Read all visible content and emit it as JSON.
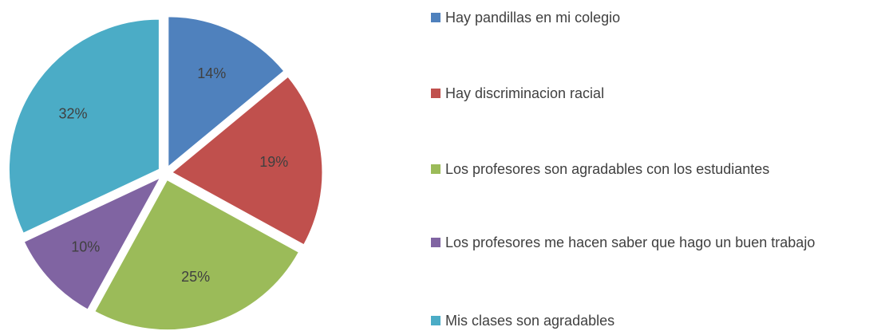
{
  "chart_data": {
    "type": "pie",
    "categories": [
      "Hay pandillas en mi colegio",
      "Hay discriminacion racial",
      "Los profesores son agradables con los estudiantes",
      "Los profesores me hacen saber que hago un buen trabajo",
      "Mis clases son agradables"
    ],
    "values": [
      14,
      19,
      25,
      10,
      32
    ],
    "value_labels": [
      "14%",
      "19%",
      "25%",
      "10%",
      "32%"
    ],
    "colors": [
      "#4f81bd",
      "#c0504d",
      "#9bbb59",
      "#8064a2",
      "#4bacc6"
    ],
    "legend": "right"
  }
}
